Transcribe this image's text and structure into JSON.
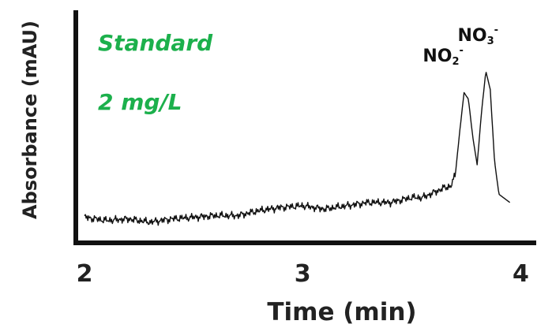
{
  "chart_data": {
    "type": "line",
    "title": "",
    "xlabel": "Time (min)",
    "ylabel": "Absorbance (mAU)",
    "xlim": [
      1.96,
      4.06
    ],
    "ylim": [
      0,
      100
    ],
    "xticks": [
      2,
      3,
      4
    ],
    "xtick_labels": [
      "2",
      "3",
      "4"
    ],
    "show_yticks": false,
    "grid": false,
    "annotations": {
      "line1": "Standard",
      "line2": "2 mg/L"
    },
    "peak_labels": [
      {
        "base": "NO",
        "sub": "2",
        "sup": "-",
        "x": 3.76
      },
      {
        "base": "NO",
        "sub": "3",
        "sup": "-",
        "x": 3.84
      }
    ],
    "series": [
      {
        "x": [
          2.0,
          2.1,
          2.2,
          2.3,
          2.4,
          2.5,
          2.6,
          2.7,
          2.8,
          2.9,
          3.0,
          3.1,
          3.2,
          3.3,
          3.4,
          3.5,
          3.55,
          3.6,
          3.65,
          3.68,
          3.7,
          3.72,
          3.74,
          3.76,
          3.78,
          3.8,
          3.82,
          3.84,
          3.86,
          3.88,
          3.9,
          3.95
        ],
        "y": [
          6,
          4,
          5,
          3,
          5,
          6,
          7,
          7,
          10,
          12,
          13,
          11,
          13,
          15,
          15,
          18,
          18,
          21,
          24,
          25,
          32,
          58,
          82,
          78,
          55,
          38,
          70,
          95,
          84,
          40,
          20,
          15
        ]
      }
    ]
  },
  "colors": {
    "annotation": "#1cb04c",
    "line": "#111111",
    "axes": "#111111",
    "text": "#222222"
  }
}
